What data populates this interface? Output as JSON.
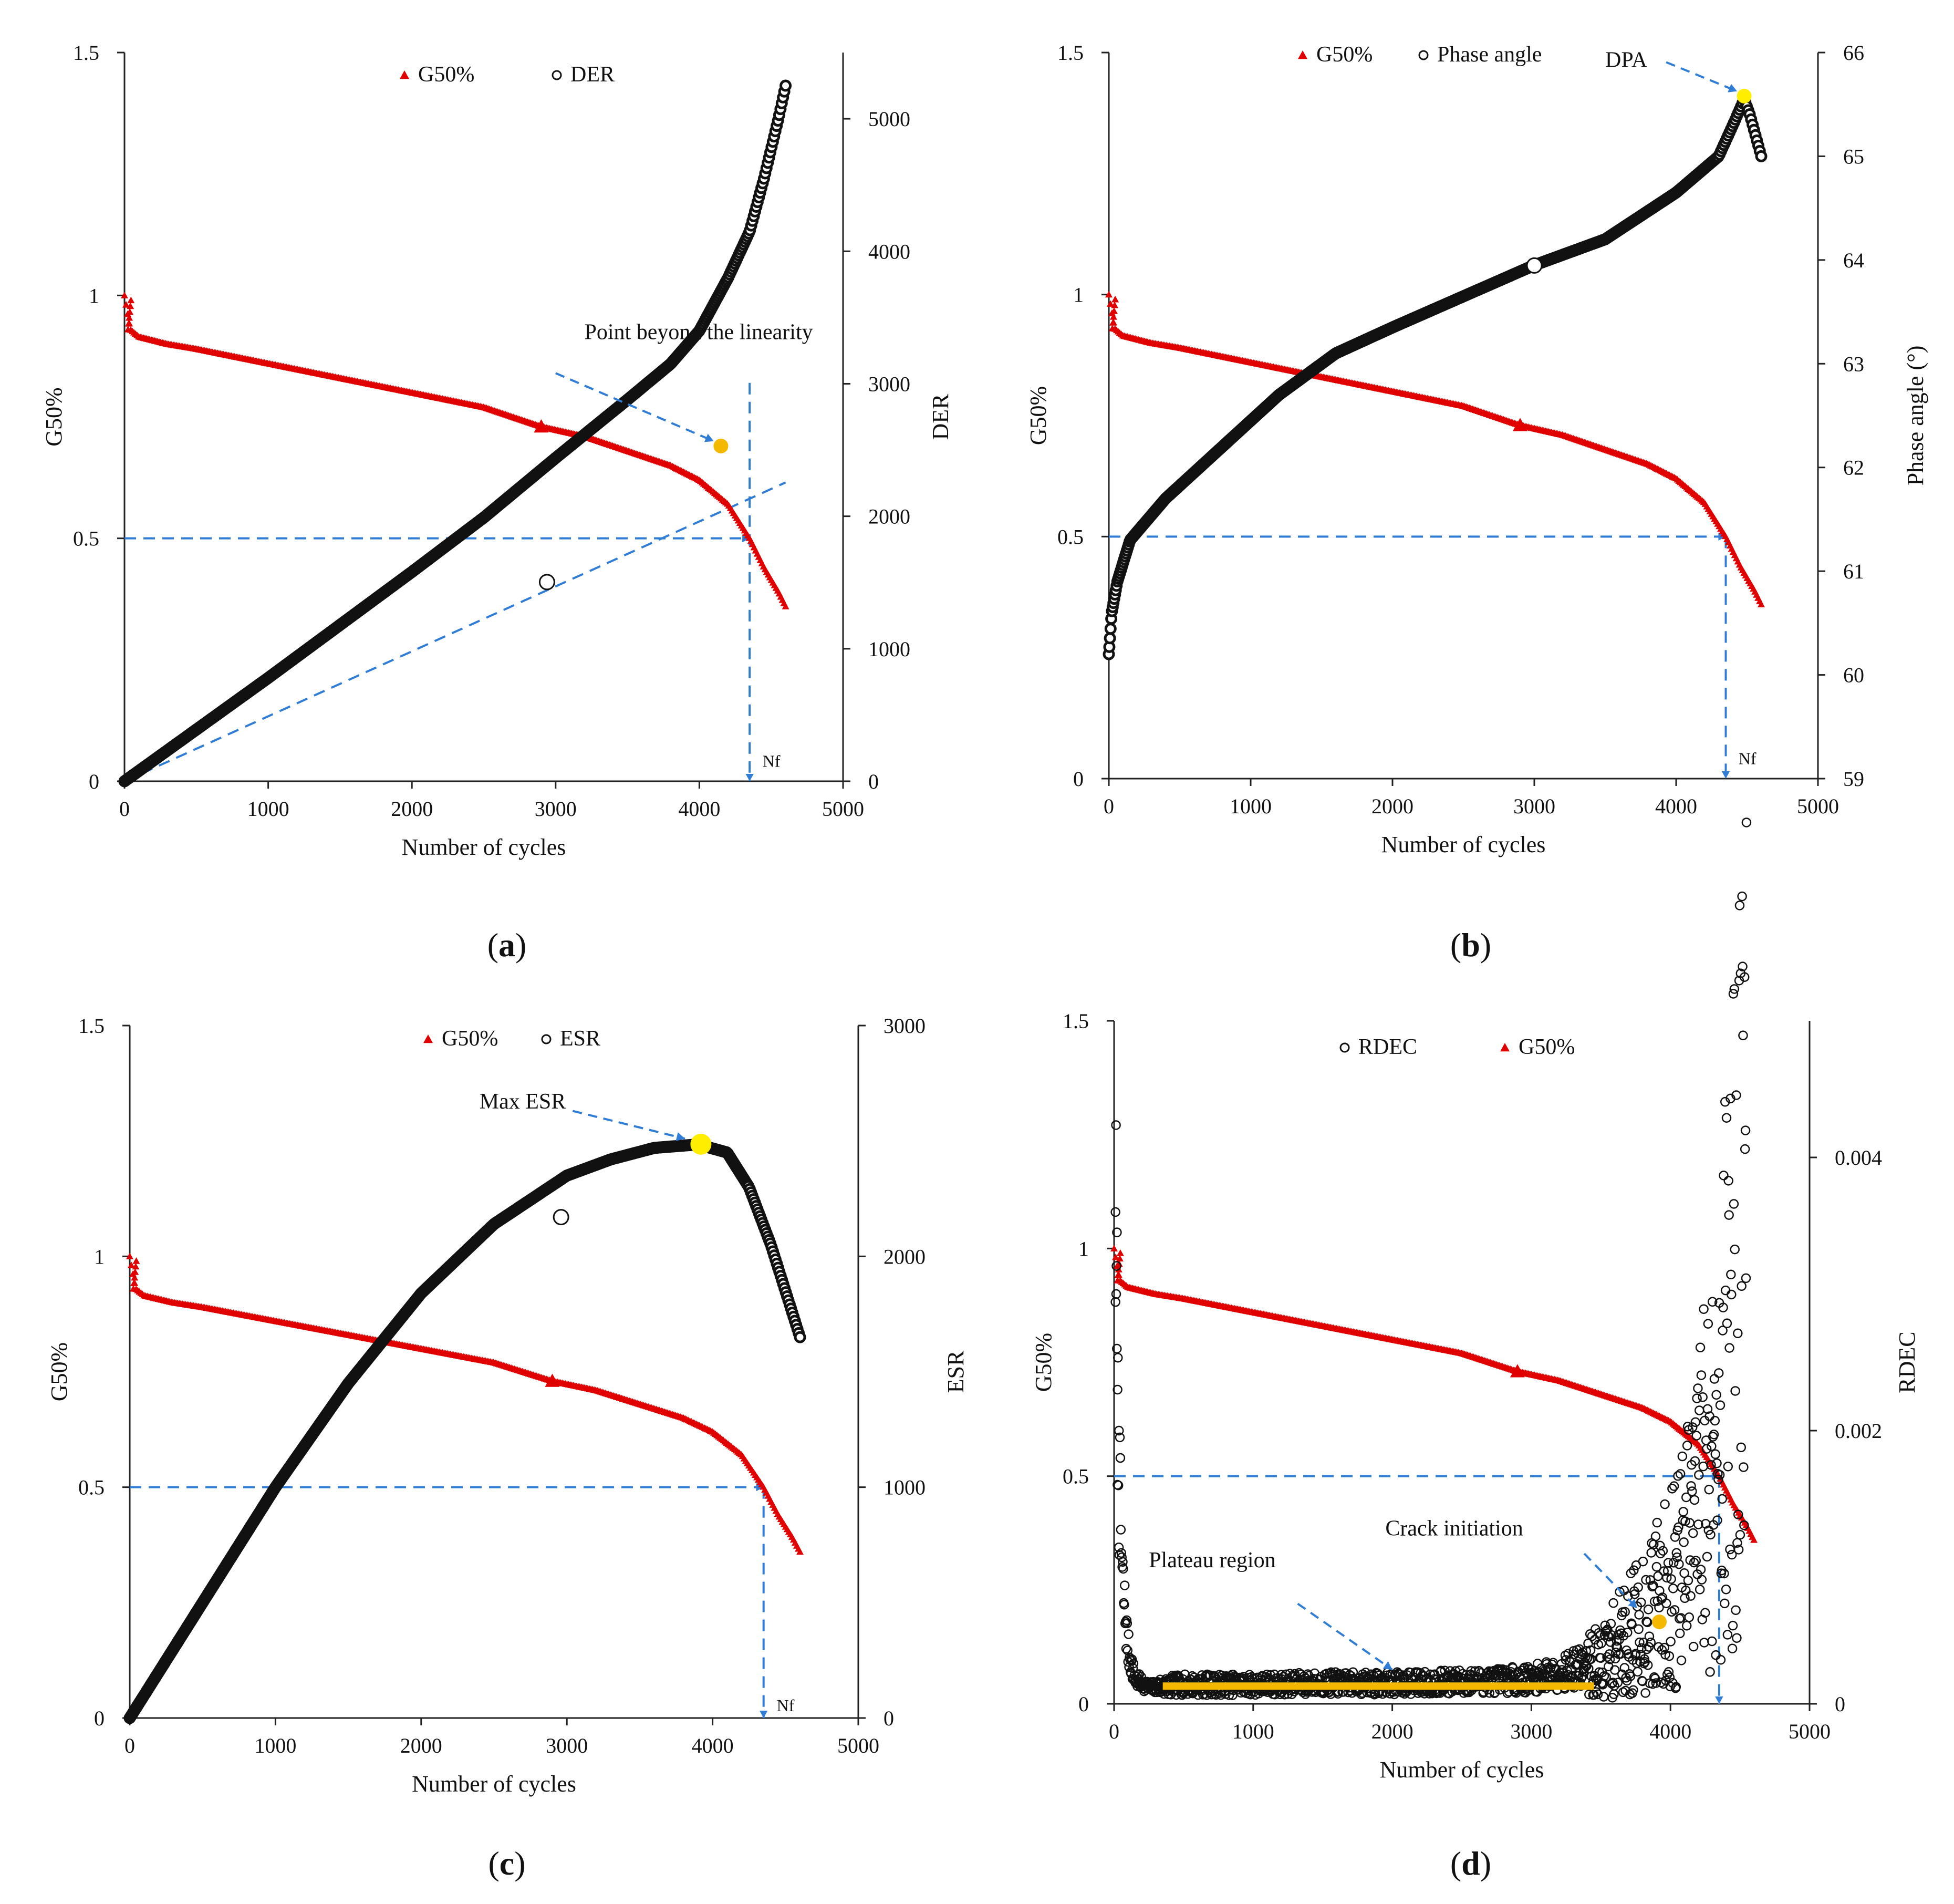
{
  "chart_data": [
    {
      "id": "a",
      "type": "line",
      "caption": "a",
      "xlabel": "Number of cycles",
      "ylabel": "G50%",
      "y2label": "DER",
      "xlim": [
        0,
        5000
      ],
      "ylim": [
        0,
        1.5
      ],
      "y2lim": [
        0,
        5500
      ],
      "xticks": [
        0,
        1000,
        2000,
        3000,
        4000,
        5000
      ],
      "yticks": [
        0,
        0.5,
        1,
        1.5
      ],
      "yticklabels": [
        "0",
        "0.5",
        "1",
        "1.5"
      ],
      "y2ticks": [
        0,
        1000,
        2000,
        3000,
        4000,
        5000
      ],
      "y2ticklabels": [
        "0",
        "1000",
        "2000",
        "3000",
        "4000",
        "5000"
      ],
      "legend": [
        {
          "label": "G50%",
          "marker": "triangle",
          "color": "#e00000"
        },
        {
          "label": "DER",
          "marker": "circle",
          "color": "#000000"
        }
      ],
      "series": [
        {
          "name": "G50%",
          "axis": "y1",
          "color": "#e00000",
          "x": [
            0,
            40,
            100,
            300,
            500,
            1000,
            1500,
            2000,
            2500,
            2900,
            3200,
            3500,
            3800,
            4000,
            4200,
            4350,
            4450,
            4550,
            4600
          ],
          "y": [
            1.0,
            0.93,
            0.915,
            0.9,
            0.89,
            0.86,
            0.83,
            0.8,
            0.77,
            0.73,
            0.71,
            0.68,
            0.65,
            0.62,
            0.57,
            0.5,
            0.44,
            0.39,
            0.36
          ]
        },
        {
          "name": "DER",
          "axis": "y2",
          "color": "#000000",
          "x": [
            0,
            500,
            1000,
            1500,
            2000,
            2500,
            3000,
            3500,
            3800,
            4000,
            4200,
            4350,
            4450,
            4550,
            4600
          ],
          "y": [
            0,
            390,
            780,
            1180,
            1580,
            1990,
            2440,
            2880,
            3150,
            3400,
            3800,
            4150,
            4550,
            5000,
            5250
          ]
        }
      ],
      "reference_lines": [
        {
          "kind": "horizontal",
          "y": 0.5,
          "x": [
            0,
            4350
          ]
        },
        {
          "kind": "vertical",
          "x": 4350,
          "y": [
            0,
            0.82
          ]
        },
        {
          "kind": "tangent",
          "x": [
            0,
            4600
          ],
          "y": [
            0,
            0.615
          ]
        }
      ],
      "highlights": [
        {
          "x": 4150,
          "y": 0.69,
          "color": "#f5b800",
          "size": "small"
        },
        {
          "x": 2940,
          "y": 0.41,
          "color": "#ffffff",
          "size": "small"
        }
      ],
      "annotations": [
        {
          "text": "Point beyond the linearity",
          "x": 3200,
          "y": 0.91,
          "arrow_to": [
            4100,
            0.7
          ]
        },
        {
          "text": "Nf",
          "x": 4440,
          "y": 0.03
        }
      ]
    },
    {
      "id": "b",
      "type": "line",
      "caption": "b",
      "xlabel": "Number of cycles",
      "ylabel": "G50%",
      "y2label": "Phase angle (°)",
      "xlim": [
        0,
        5000
      ],
      "ylim": [
        0,
        1.5
      ],
      "y2lim": [
        59,
        66
      ],
      "xticks": [
        0,
        1000,
        2000,
        3000,
        4000,
        5000
      ],
      "yticks": [
        0,
        0.5,
        1,
        1.5
      ],
      "yticklabels": [
        "0",
        "0.5",
        "1",
        "1.5"
      ],
      "y2ticks": [
        59,
        60,
        61,
        62,
        63,
        64,
        65,
        66
      ],
      "y2ticklabels": [
        "59",
        "60",
        "61",
        "62",
        "63",
        "64",
        "65",
        "66"
      ],
      "legend": [
        {
          "label": "G50%",
          "marker": "triangle",
          "color": "#e00000"
        },
        {
          "label": "Phase angle",
          "marker": "circle",
          "color": "#000000"
        }
      ],
      "series": [
        {
          "name": "G50%",
          "axis": "y1",
          "color": "#e00000",
          "x": [
            0,
            40,
            100,
            300,
            500,
            1000,
            1500,
            2000,
            2500,
            2900,
            3200,
            3500,
            3800,
            4000,
            4200,
            4350,
            4450,
            4550,
            4600
          ],
          "y": [
            1.0,
            0.93,
            0.915,
            0.9,
            0.89,
            0.86,
            0.83,
            0.8,
            0.77,
            0.73,
            0.71,
            0.68,
            0.65,
            0.62,
            0.57,
            0.5,
            0.44,
            0.39,
            0.36
          ]
        },
        {
          "name": "Phase angle",
          "axis": "y2",
          "color": "#000000",
          "x": [
            0,
            20,
            60,
            150,
            400,
            800,
            1200,
            1600,
            2000,
            2500,
            3000,
            3500,
            4000,
            4300,
            4400,
            4480,
            4520,
            4560,
            4600
          ],
          "y": [
            60.2,
            60.6,
            60.9,
            61.3,
            61.7,
            62.2,
            62.7,
            63.1,
            63.35,
            63.65,
            63.95,
            64.2,
            64.65,
            65.0,
            65.3,
            65.55,
            65.4,
            65.2,
            65.0
          ]
        }
      ],
      "reference_lines": [
        {
          "kind": "horizontal",
          "y": 0.5,
          "x": [
            0,
            4350
          ]
        },
        {
          "kind": "vertical",
          "x": 4350,
          "y": [
            0,
            0.5
          ]
        }
      ],
      "highlights": [
        {
          "x": 4480,
          "y": 1.41,
          "color": "#ffee00",
          "size": "small"
        },
        {
          "x": 3000,
          "y": 1.06,
          "color": "#ffffff",
          "size": "small"
        }
      ],
      "annotations": [
        {
          "text": "DPA",
          "x": 3500,
          "y": 1.47,
          "arrow_to": [
            4430,
            1.42
          ]
        },
        {
          "text": "Nf",
          "x": 4440,
          "y": 0.03
        }
      ]
    },
    {
      "id": "c",
      "type": "line",
      "caption": "c",
      "xlabel": "Number of cycles",
      "ylabel": "G50%",
      "y2label": "ESR",
      "xlim": [
        0,
        5000
      ],
      "ylim": [
        0,
        1.5
      ],
      "y2lim": [
        0,
        3000
      ],
      "xticks": [
        0,
        1000,
        2000,
        3000,
        4000,
        5000
      ],
      "yticks": [
        0,
        0.5,
        1,
        1.5
      ],
      "yticklabels": [
        "0",
        "0.5",
        "1",
        "1.5"
      ],
      "y2ticks": [
        0,
        1000,
        2000,
        3000
      ],
      "y2ticklabels": [
        "0",
        "1000",
        "2000",
        "3000"
      ],
      "legend": [
        {
          "label": "G50%",
          "marker": "triangle",
          "color": "#e00000"
        },
        {
          "label": "ESR",
          "marker": "circle",
          "color": "#000000"
        }
      ],
      "series": [
        {
          "name": "G50%",
          "axis": "y1",
          "color": "#e00000",
          "x": [
            0,
            40,
            100,
            300,
            500,
            1000,
            1500,
            2000,
            2500,
            2900,
            3200,
            3500,
            3800,
            4000,
            4200,
            4350,
            4450,
            4550,
            4600
          ],
          "y": [
            1.0,
            0.93,
            0.915,
            0.9,
            0.89,
            0.86,
            0.83,
            0.8,
            0.77,
            0.73,
            0.71,
            0.68,
            0.65,
            0.62,
            0.57,
            0.5,
            0.44,
            0.39,
            0.36
          ]
        },
        {
          "name": "ESR",
          "axis": "y2",
          "color": "#000000",
          "x": [
            0,
            500,
            1000,
            1500,
            2000,
            2500,
            3000,
            3300,
            3600,
            3900,
            4100,
            4250,
            4400,
            4500,
            4600
          ],
          "y": [
            0,
            500,
            1000,
            1450,
            1840,
            2140,
            2350,
            2420,
            2470,
            2485,
            2450,
            2300,
            2050,
            1850,
            1650
          ]
        }
      ],
      "reference_lines": [
        {
          "kind": "horizontal",
          "y": 0.5,
          "x": [
            0,
            4350
          ]
        },
        {
          "kind": "vertical",
          "x": 4350,
          "y": [
            0,
            0.5
          ]
        }
      ],
      "highlights": [
        {
          "x": 3920,
          "y": 1.243,
          "color": "#ffee00",
          "size": "large"
        },
        {
          "x": 2960,
          "y": 1.085,
          "color": "#ffffff",
          "size": "small"
        }
      ],
      "annotations": [
        {
          "text": "Max ESR",
          "x": 2400,
          "y": 1.32,
          "arrow_to": [
            3810,
            1.255
          ]
        },
        {
          "text": "Nf",
          "x": 4440,
          "y": 0.015
        }
      ]
    },
    {
      "id": "d",
      "type": "scatter",
      "caption": "d",
      "xlabel": "Number of cycles",
      "ylabel": "G50%",
      "y2label": "RDEC",
      "xlim": [
        0,
        5000
      ],
      "ylim": [
        0,
        1.5
      ],
      "y2lim": [
        0,
        0.005
      ],
      "xticks": [
        0,
        1000,
        2000,
        3000,
        4000,
        5000
      ],
      "yticks": [
        0,
        0.5,
        1,
        1.5
      ],
      "yticklabels": [
        "0",
        "0.5",
        "1",
        "1.5"
      ],
      "y2ticks": [
        0,
        0.002,
        0.004
      ],
      "y2ticklabels": [
        "0",
        "0.002",
        "0.004"
      ],
      "legend": [
        {
          "label": "RDEC",
          "marker": "circle",
          "color": "#000000"
        },
        {
          "label": "G50%",
          "marker": "triangle",
          "color": "#e00000"
        }
      ],
      "series": [
        {
          "name": "G50%",
          "axis": "y1",
          "color": "#e00000",
          "x": [
            0,
            40,
            100,
            300,
            500,
            1000,
            1500,
            2000,
            2500,
            2900,
            3200,
            3500,
            3800,
            4000,
            4200,
            4350,
            4450,
            4550,
            4600
          ],
          "y": [
            1.0,
            0.93,
            0.915,
            0.9,
            0.89,
            0.86,
            0.83,
            0.8,
            0.77,
            0.73,
            0.71,
            0.68,
            0.65,
            0.62,
            0.57,
            0.5,
            0.44,
            0.39,
            0.36
          ]
        },
        {
          "name": "RDEC",
          "axis": "y2",
          "color": "#000000",
          "x": [
            10,
            30,
            60,
            100,
            150,
            250,
            500,
            1000,
            1500,
            2000,
            2500,
            3000,
            3300,
            3500,
            3700,
            3900,
            4100,
            4300,
            4400,
            4500,
            4550
          ],
          "y": [
            0.0036,
            0.0018,
            0.0009,
            0.0004,
            0.00018,
            0.00012,
            0.00014,
            0.00014,
            0.00015,
            0.00015,
            0.00016,
            0.00018,
            0.00025,
            0.0003,
            0.0005,
            0.0007,
            0.001,
            0.0018,
            0.0024,
            0.0032,
            0.005
          ]
        },
        {
          "name": "RDEC plateau fit",
          "axis": "y2",
          "color": "#f5b800",
          "x": [
            350,
            3450
          ],
          "y": [
            0.00013,
            0.00013
          ]
        }
      ],
      "reference_lines": [
        {
          "kind": "horizontal",
          "y": 0.5,
          "x": [
            0,
            4350
          ]
        },
        {
          "kind": "vertical",
          "x": 4350,
          "y": [
            0,
            0.5
          ]
        }
      ],
      "highlights": [
        {
          "x": 3920,
          "y": 0.18,
          "color": "#f5b800",
          "size": "small"
        }
      ],
      "annotations": [
        {
          "text": "Plateau region",
          "x": 250,
          "y": 0.3,
          "arrow_to": [
            2000,
            0.075
          ]
        },
        {
          "text": "Crack initiation",
          "x": 1950,
          "y": 0.37,
          "arrow_to": [
            3760,
            0.21
          ]
        }
      ]
    }
  ]
}
